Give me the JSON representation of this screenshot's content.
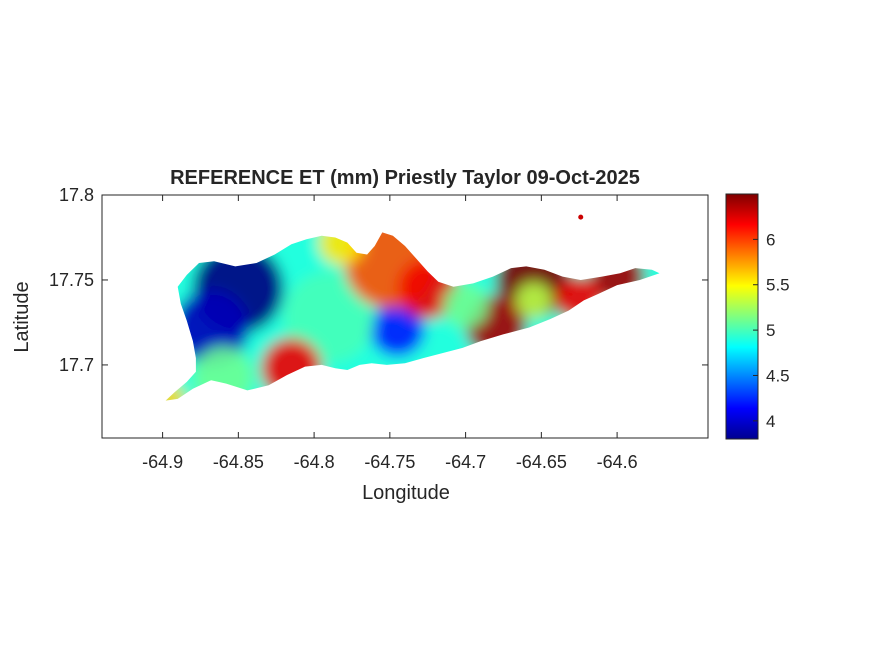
{
  "chart_data": {
    "type": "heatmap",
    "title": "REFERENCE ET (mm) Priestly Taylor 09-Oct-2025",
    "xlabel": "Longitude",
    "ylabel": "Latitude",
    "xlim": [
      -64.94,
      -64.54
    ],
    "ylim": [
      17.657,
      17.8
    ],
    "x_ticks": [
      -64.9,
      -64.85,
      -64.8,
      -64.75,
      -64.7,
      -64.65,
      -64.6
    ],
    "x_tick_labels": [
      "-64.9",
      "-64.85",
      "-64.8",
      "-64.75",
      "-64.7",
      "-64.65",
      "-64.6"
    ],
    "y_ticks": [
      17.7,
      17.75,
      17.8
    ],
    "y_tick_labels": [
      "17.7",
      "17.75",
      "17.8"
    ],
    "colorbar": {
      "colormap": "jet",
      "clim": [
        3.8,
        6.5
      ],
      "ticks": [
        4,
        4.5,
        5,
        5.5,
        6
      ],
      "tick_labels": [
        "4",
        "4.5",
        "5",
        "5.5",
        "6"
      ]
    },
    "grid": false,
    "island_outline": [
      [
        -64.898,
        17.679
      ],
      [
        -64.892,
        17.684
      ],
      [
        -64.884,
        17.69
      ],
      [
        -64.878,
        17.696
      ],
      [
        -64.878,
        17.704
      ],
      [
        -64.88,
        17.714
      ],
      [
        -64.884,
        17.726
      ],
      [
        -64.888,
        17.736
      ],
      [
        -64.89,
        17.746
      ],
      [
        -64.884,
        17.753
      ],
      [
        -64.876,
        17.76
      ],
      [
        -64.866,
        17.761
      ],
      [
        -64.852,
        17.758
      ],
      [
        -64.838,
        17.76
      ],
      [
        -64.826,
        17.765
      ],
      [
        -64.815,
        17.771
      ],
      [
        -64.805,
        17.774
      ],
      [
        -64.795,
        17.776
      ],
      [
        -64.786,
        17.775
      ],
      [
        -64.778,
        17.772
      ],
      [
        -64.772,
        17.766
      ],
      [
        -64.765,
        17.765
      ],
      [
        -64.76,
        17.77
      ],
      [
        -64.755,
        17.778
      ],
      [
        -64.748,
        17.776
      ],
      [
        -64.74,
        17.77
      ],
      [
        -64.733,
        17.763
      ],
      [
        -64.725,
        17.755
      ],
      [
        -64.718,
        17.749
      ],
      [
        -64.708,
        17.746
      ],
      [
        -64.695,
        17.748
      ],
      [
        -64.682,
        17.752
      ],
      [
        -64.67,
        17.757
      ],
      [
        -64.66,
        17.758
      ],
      [
        -64.648,
        17.756
      ],
      [
        -64.636,
        17.752
      ],
      [
        -64.624,
        17.75
      ],
      [
        -64.61,
        17.752
      ],
      [
        -64.598,
        17.754
      ],
      [
        -64.588,
        17.757
      ],
      [
        -64.577,
        17.756
      ],
      [
        -64.572,
        17.754
      ],
      [
        -64.585,
        17.75
      ],
      [
        -64.6,
        17.747
      ],
      [
        -64.612,
        17.742
      ],
      [
        -64.622,
        17.738
      ],
      [
        -64.632,
        17.732
      ],
      [
        -64.644,
        17.727
      ],
      [
        -64.658,
        17.722
      ],
      [
        -64.675,
        17.718
      ],
      [
        -64.69,
        17.714
      ],
      [
        -64.702,
        17.71
      ],
      [
        -64.715,
        17.707
      ],
      [
        -64.728,
        17.704
      ],
      [
        -64.74,
        17.701
      ],
      [
        -64.752,
        17.7
      ],
      [
        -64.762,
        17.701
      ],
      [
        -64.77,
        17.7
      ],
      [
        -64.778,
        17.697
      ],
      [
        -64.786,
        17.698
      ],
      [
        -64.795,
        17.7
      ],
      [
        -64.806,
        17.699
      ],
      [
        -64.818,
        17.694
      ],
      [
        -64.83,
        17.688
      ],
      [
        -64.844,
        17.685
      ],
      [
        -64.858,
        17.689
      ],
      [
        -64.868,
        17.691
      ],
      [
        -64.88,
        17.686
      ],
      [
        -64.89,
        17.68
      ]
    ],
    "hotspots": [
      {
        "lon": -64.85,
        "lat": 17.745,
        "value": 3.8,
        "spread": 0.03
      },
      {
        "lon": -64.868,
        "lat": 17.722,
        "value": 3.95,
        "spread": 0.025
      },
      {
        "lon": -64.745,
        "lat": 17.721,
        "value": 4.2,
        "spread": 0.018
      },
      {
        "lon": -64.79,
        "lat": 17.728,
        "value": 5.0,
        "spread": 0.03
      },
      {
        "lon": -64.86,
        "lat": 17.693,
        "value": 5.1,
        "spread": 0.02
      },
      {
        "lon": -64.75,
        "lat": 17.76,
        "value": 5.95,
        "spread": 0.03
      },
      {
        "lon": -64.782,
        "lat": 17.772,
        "value": 5.55,
        "spread": 0.015
      },
      {
        "lon": -64.725,
        "lat": 17.745,
        "value": 6.2,
        "spread": 0.02
      },
      {
        "lon": -64.655,
        "lat": 17.75,
        "value": 6.5,
        "spread": 0.025
      },
      {
        "lon": -64.6,
        "lat": 17.752,
        "value": 6.4,
        "spread": 0.018
      },
      {
        "lon": -64.625,
        "lat": 17.739,
        "value": 6.2,
        "spread": 0.015
      },
      {
        "lon": -64.68,
        "lat": 17.723,
        "value": 6.4,
        "spread": 0.02
      },
      {
        "lon": -64.815,
        "lat": 17.698,
        "value": 6.2,
        "spread": 0.02
      },
      {
        "lon": -64.7,
        "lat": 17.735,
        "value": 5.1,
        "spread": 0.015
      },
      {
        "lon": -64.655,
        "lat": 17.738,
        "value": 5.3,
        "spread": 0.012
      },
      {
        "lon": -64.895,
        "lat": 17.68,
        "value": 5.6,
        "spread": 0.01
      }
    ],
    "islet": {
      "lon": -64.624,
      "lat": 17.787,
      "value": 6.3
    }
  }
}
